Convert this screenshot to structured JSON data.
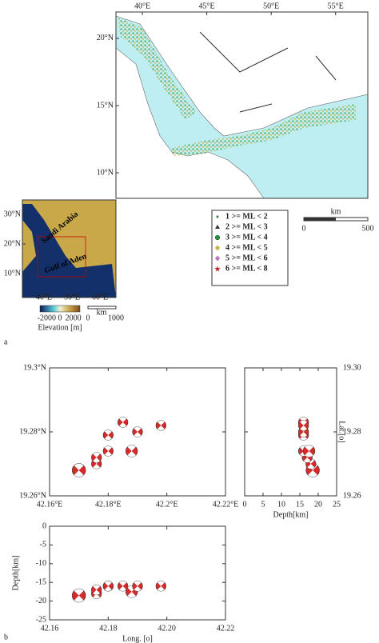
{
  "map": {
    "xlim": [
      37.95,
      57.5
    ],
    "ylim": [
      8.1,
      21.96
    ],
    "xticks": [
      {
        "value": 40,
        "label": "40°E"
      },
      {
        "value": 45,
        "label": "45°E"
      },
      {
        "value": 50,
        "label": "50°E"
      },
      {
        "value": 55,
        "label": "55°E"
      }
    ],
    "yticks": [
      {
        "value": 20,
        "label": "20°N"
      },
      {
        "value": 15,
        "label": "15°N"
      },
      {
        "value": 10,
        "label": "10°N"
      }
    ],
    "scale": {
      "unit": "km",
      "ticks": [
        0,
        500
      ]
    },
    "legend": [
      {
        "label": "1 >= ML < 2",
        "color": "#2e7d32",
        "marker": "dot"
      },
      {
        "label": "2 >= ML < 3",
        "color": "#333333",
        "marker": "triangle"
      },
      {
        "label": "3 >= ML < 4",
        "color": "#1b9e3a",
        "marker": "circle"
      },
      {
        "label": "4 >= ML < 5",
        "color": "#c9b13a",
        "marker": "diamond"
      },
      {
        "label": "5 >= ML < 6",
        "color": "#c070c0",
        "marker": "diamond"
      },
      {
        "label": "6 >= ML < 8",
        "color": "#c0282d",
        "marker": "star"
      }
    ]
  },
  "inset": {
    "xlim": [
      32.3,
      65.7
    ],
    "ylim": [
      1.9,
      34.9
    ],
    "xticks": [
      {
        "value": 40,
        "label": "40°E"
      },
      {
        "value": 50,
        "label": "50°E"
      },
      {
        "value": 60,
        "label": "60°E"
      }
    ],
    "yticks": [
      {
        "value": 30,
        "label": "30°N"
      },
      {
        "value": 20,
        "label": "20°N"
      },
      {
        "value": 10,
        "label": "10°N"
      }
    ],
    "labels": [
      "Saudi Arabia",
      "Gulf of Aden"
    ],
    "colorbar": {
      "title": "Elevation [m]",
      "ticks": [
        -2000,
        0,
        2000
      ]
    },
    "scale": {
      "unit": "km",
      "ticks": [
        0,
        1000
      ]
    }
  },
  "panel_labels": [
    "a",
    "b"
  ],
  "events": [
    {
      "lon": 42.17,
      "lat": 19.268,
      "depth": 18.5,
      "ml": 4
    },
    {
      "lon": 42.176,
      "lat": 19.27,
      "depth": 18,
      "ml": 3
    },
    {
      "lon": 42.176,
      "lat": 19.272,
      "depth": 17,
      "ml": 3
    },
    {
      "lon": 42.18,
      "lat": 19.274,
      "depth": 16,
      "ml": 3
    },
    {
      "lon": 42.18,
      "lat": 19.279,
      "depth": 16,
      "ml": 3
    },
    {
      "lon": 42.185,
      "lat": 19.283,
      "depth": 16,
      "ml": 3
    },
    {
      "lon": 42.188,
      "lat": 19.274,
      "depth": 17.5,
      "ml": 3.5
    },
    {
      "lon": 42.19,
      "lat": 19.28,
      "depth": 16,
      "ml": 3
    },
    {
      "lon": 42.198,
      "lat": 19.282,
      "depth": 16,
      "ml": 3
    }
  ],
  "plan": {
    "xlim": [
      42.16,
      42.22
    ],
    "ylim": [
      19.26,
      19.3
    ],
    "xticks": [
      {
        "value": 42.16,
        "label": "42.16°E"
      },
      {
        "value": 42.18,
        "label": "42.18°E"
      },
      {
        "value": 42.2,
        "label": "42.2°E"
      },
      {
        "value": 42.22,
        "label": "42.22°E"
      }
    ],
    "yticks": [
      {
        "value": 19.3,
        "label": "19.3°N"
      },
      {
        "value": 19.28,
        "label": "19.28°N"
      },
      {
        "value": 19.26,
        "label": "19.26°N"
      }
    ]
  },
  "lat_section": {
    "xlabel": "Depth[km]",
    "ylabel": "Lat.[o]",
    "xlim": [
      0,
      25
    ],
    "ylim": [
      19.26,
      19.3
    ],
    "xticks": [
      0,
      5,
      10,
      15,
      20,
      25
    ],
    "yticks": [
      {
        "value": 19.3,
        "label": "19.30"
      },
      {
        "value": 19.28,
        "label": "19.28"
      },
      {
        "value": 19.26,
        "label": "19.26"
      }
    ]
  },
  "lon_section": {
    "xlabel": "Long. [o]",
    "ylabel": "Depth[km]",
    "xlim": [
      42.16,
      42.22
    ],
    "ylim": [
      -25,
      0
    ],
    "yticks": [
      0,
      -5,
      -10,
      -15,
      -20,
      -25
    ],
    "xticks": [
      {
        "value": 42.16,
        "label": "42.16"
      },
      {
        "value": 42.18,
        "label": "42.18"
      },
      {
        "value": 42.2,
        "label": "42.20"
      },
      {
        "value": 42.22,
        "label": "42.22"
      }
    ]
  }
}
